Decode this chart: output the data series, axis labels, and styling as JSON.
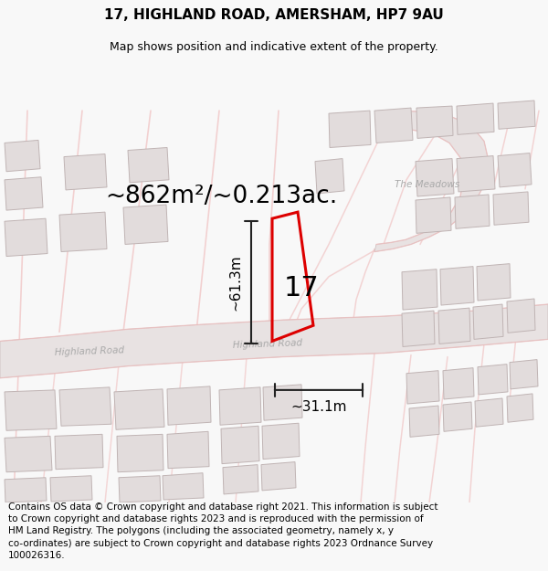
{
  "title": "17, HIGHLAND ROAD, AMERSHAM, HP7 9AU",
  "subtitle": "Map shows position and indicative extent of the property.",
  "area_label": "~862m²/~0.213ac.",
  "number_label": "17",
  "dim_height_label": "~61.3m",
  "dim_width_label": "~31.1m",
  "footer_line1": "Contains OS data © Crown copyright and database right 2021. This information is subject",
  "footer_line2": "to Crown copyright and database rights 2023 and is reproduced with the permission of",
  "footer_line3": "HM Land Registry. The polygons (including the associated geometry, namely x, y",
  "footer_line4": "co-ordinates) are subject to Crown copyright and database rights 2023 Ordnance Survey",
  "footer_line5": "100026316.",
  "bg_color": "#f8f8f8",
  "map_bg_color": "#f8f6f6",
  "road_fill": "#e8e2e2",
  "road_edge": "#c8b8b8",
  "road_line": "#f0c0c0",
  "building_fill": "#e2dcdc",
  "building_stroke": "#c0b4b4",
  "property_stroke": "#dd0000",
  "dim_color": "#222222",
  "road_label_color": "#aaaaaa",
  "title_fontsize": 11,
  "subtitle_fontsize": 9,
  "area_fontsize": 19,
  "number_fontsize": 22,
  "dim_fontsize": 11,
  "footer_fontsize": 7.5,
  "road_label_fontsize": 7.5,
  "figsize": [
    6.0,
    6.25
  ],
  "dpi": 100
}
